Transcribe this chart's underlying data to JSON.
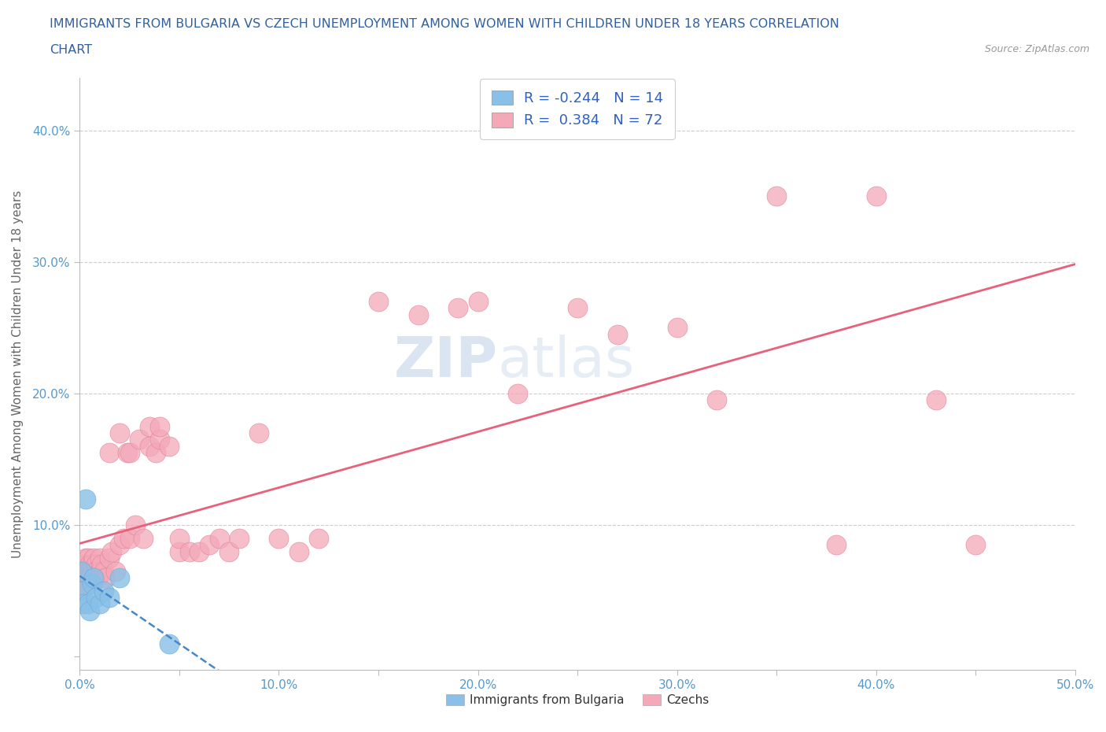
{
  "title_line1": "IMMIGRANTS FROM BULGARIA VS CZECH UNEMPLOYMENT AMONG WOMEN WITH CHILDREN UNDER 18 YEARS CORRELATION",
  "title_line2": "CHART",
  "source": "Source: ZipAtlas.com",
  "ylabel": "Unemployment Among Women with Children Under 18 years",
  "xlim": [
    0.0,
    0.5
  ],
  "ylim": [
    -0.01,
    0.44
  ],
  "xticks": [
    0.0,
    0.05,
    0.1,
    0.15,
    0.2,
    0.25,
    0.3,
    0.35,
    0.4,
    0.45,
    0.5
  ],
  "xticklabels": [
    "0.0%",
    "",
    "10.0%",
    "",
    "20.0%",
    "",
    "30.0%",
    "",
    "40.0%",
    "",
    "50.0%"
  ],
  "yticks": [
    0.0,
    0.1,
    0.2,
    0.3,
    0.4
  ],
  "yticklabels": [
    "",
    "10.0%",
    "20.0%",
    "30.0%",
    "40.0%"
  ],
  "grid_color": "#cccccc",
  "background_color": "#ffffff",
  "series_bulgaria": {
    "color": "#89c0e8",
    "edgecolor": "#6aaad4",
    "label": "Immigrants from Bulgaria",
    "R": -0.244,
    "N": 14,
    "x": [
      0.001,
      0.001,
      0.002,
      0.003,
      0.004,
      0.005,
      0.006,
      0.007,
      0.008,
      0.01,
      0.012,
      0.015,
      0.02,
      0.045
    ],
    "y": [
      0.065,
      0.05,
      0.04,
      0.12,
      0.04,
      0.035,
      0.055,
      0.06,
      0.045,
      0.04,
      0.05,
      0.045,
      0.06,
      0.01
    ]
  },
  "series_czechs": {
    "color": "#f4a8b8",
    "edgecolor": "#e08098",
    "label": "Czechs",
    "R": 0.384,
    "N": 72,
    "x": [
      0.001,
      0.001,
      0.001,
      0.002,
      0.002,
      0.002,
      0.003,
      0.003,
      0.003,
      0.004,
      0.004,
      0.004,
      0.005,
      0.005,
      0.005,
      0.006,
      0.006,
      0.007,
      0.007,
      0.008,
      0.008,
      0.009,
      0.01,
      0.01,
      0.011,
      0.012,
      0.013,
      0.015,
      0.015,
      0.016,
      0.018,
      0.02,
      0.02,
      0.022,
      0.024,
      0.025,
      0.025,
      0.028,
      0.03,
      0.032,
      0.035,
      0.035,
      0.038,
      0.04,
      0.04,
      0.045,
      0.05,
      0.05,
      0.055,
      0.06,
      0.065,
      0.07,
      0.075,
      0.08,
      0.09,
      0.1,
      0.11,
      0.12,
      0.15,
      0.17,
      0.19,
      0.2,
      0.22,
      0.25,
      0.27,
      0.3,
      0.32,
      0.35,
      0.38,
      0.4,
      0.43,
      0.45
    ],
    "y": [
      0.055,
      0.065,
      0.06,
      0.06,
      0.07,
      0.055,
      0.065,
      0.075,
      0.06,
      0.055,
      0.075,
      0.065,
      0.06,
      0.07,
      0.06,
      0.07,
      0.065,
      0.075,
      0.06,
      0.07,
      0.065,
      0.06,
      0.075,
      0.065,
      0.07,
      0.065,
      0.06,
      0.075,
      0.155,
      0.08,
      0.065,
      0.085,
      0.17,
      0.09,
      0.155,
      0.09,
      0.155,
      0.1,
      0.165,
      0.09,
      0.16,
      0.175,
      0.155,
      0.165,
      0.175,
      0.16,
      0.08,
      0.09,
      0.08,
      0.08,
      0.085,
      0.09,
      0.08,
      0.09,
      0.17,
      0.09,
      0.08,
      0.09,
      0.27,
      0.26,
      0.265,
      0.27,
      0.2,
      0.265,
      0.245,
      0.25,
      0.195,
      0.35,
      0.085,
      0.35,
      0.195,
      0.085
    ]
  },
  "watermark_zip": "ZIP",
  "watermark_atlas": "atlas",
  "trend_bulgaria_color": "#4488cc",
  "trend_czechs_color": "#e8607a",
  "title_color": "#3060a0",
  "axis_label_color": "#666666",
  "tick_label_color": "#5599cc",
  "legend_color": "#3060c0",
  "marker_size": 18
}
